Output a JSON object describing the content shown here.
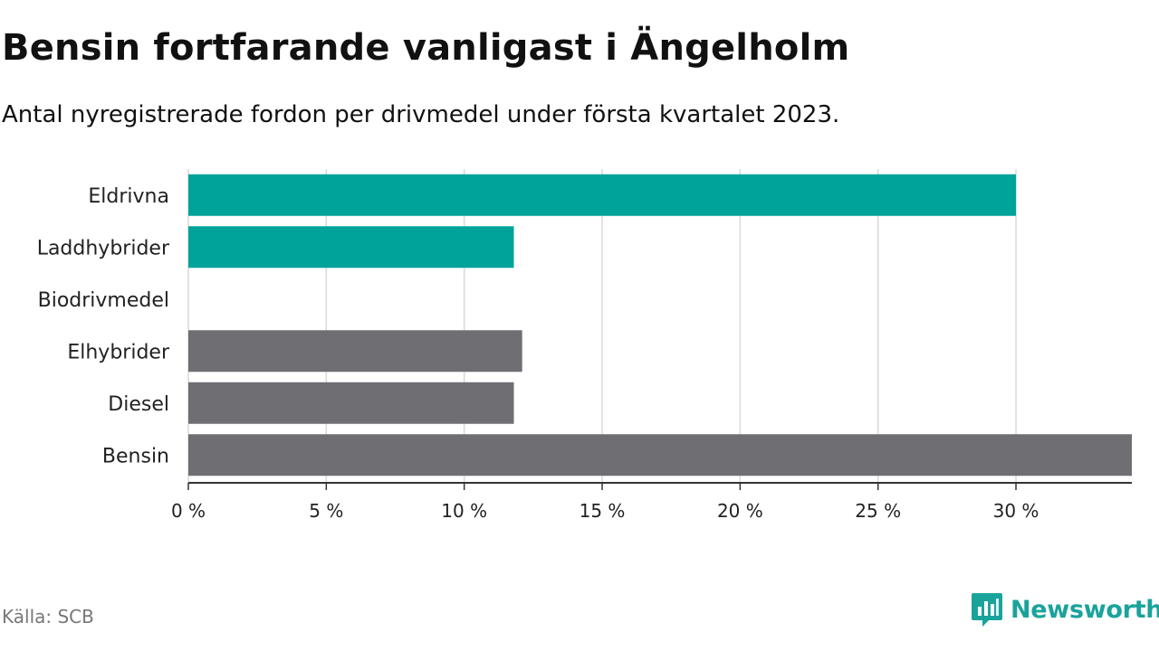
{
  "header": {
    "title": "Bensin fortfarande vanligast i Ängelholm",
    "subtitle": "Antal nyregistrerade fordon per drivmedel under första kvartalet 2023."
  },
  "footer": {
    "source": "Källa: SCB",
    "brand": "Newsworthy"
  },
  "colors": {
    "highlight": "#00a39a",
    "default": "#6f6e73",
    "grid": "#d9d9d9",
    "axis": "#333333",
    "brand": "#1aa39b"
  },
  "chart_data": {
    "type": "bar",
    "orientation": "horizontal",
    "categories": [
      "Eldrivna",
      "Laddhybrider",
      "Biodrivmedel",
      "Elhybrider",
      "Diesel",
      "Bensin"
    ],
    "values": [
      30.0,
      11.8,
      0,
      12.1,
      11.8,
      34.2
    ],
    "bar_colors": [
      "highlight",
      "highlight",
      "highlight",
      "default",
      "default",
      "default"
    ],
    "xlim": [
      0,
      34.2
    ],
    "xticks": [
      0,
      5,
      10,
      15,
      20,
      25,
      30
    ],
    "xtick_labels": [
      "0 %",
      "5 %",
      "10 %",
      "15 %",
      "20 %",
      "25 %",
      "30 %"
    ],
    "grid": true,
    "xlabel": "",
    "ylabel": ""
  }
}
